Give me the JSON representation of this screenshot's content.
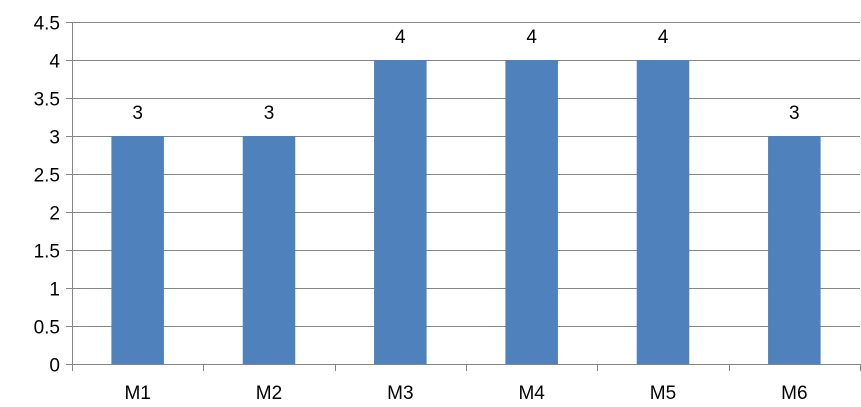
{
  "chart_data": {
    "type": "bar",
    "categories": [
      "M1",
      "M2",
      "M3",
      "M4",
      "M5",
      "M6"
    ],
    "values": [
      3,
      3,
      4,
      4,
      4,
      3
    ],
    "data_labels": [
      "3",
      "3",
      "4",
      "4",
      "4",
      "3"
    ],
    "title": "",
    "xlabel": "",
    "ylabel": "",
    "ylim": [
      0,
      4.5
    ],
    "y_ticks": [
      {
        "value": 0,
        "label": "0"
      },
      {
        "value": 0.5,
        "label": "0.5"
      },
      {
        "value": 1,
        "label": "1"
      },
      {
        "value": 1.5,
        "label": "1.5"
      },
      {
        "value": 2,
        "label": "2"
      },
      {
        "value": 2.5,
        "label": "2.5"
      },
      {
        "value": 3,
        "label": "3"
      },
      {
        "value": 3.5,
        "label": "3.5"
      },
      {
        "value": 4,
        "label": "4"
      },
      {
        "value": 4.5,
        "label": "4.5"
      }
    ],
    "grid": true,
    "legend": "none",
    "bar_color": "#4F81BD",
    "grid_color": "#868686",
    "axis_color": "#868686"
  }
}
